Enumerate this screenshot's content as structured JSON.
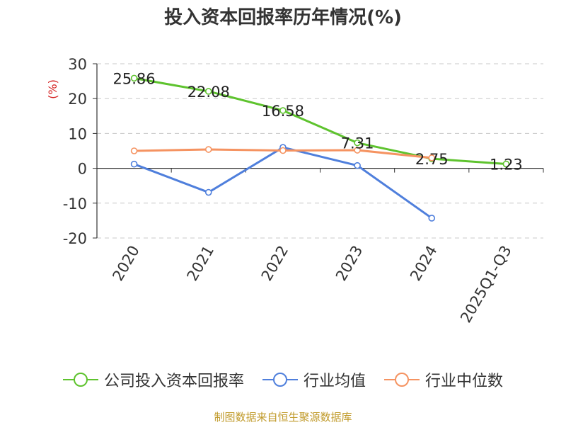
{
  "chart_data": {
    "type": "line",
    "title": "投入资本回报率历年情况(%)",
    "ylabel": "(%)",
    "categories": [
      "2020",
      "2021",
      "2022",
      "2023",
      "2024",
      "2025Q1-Q3"
    ],
    "ylim": [
      -20,
      30
    ],
    "yticks": [
      30,
      20,
      10,
      0,
      -10,
      -20
    ],
    "grid": true,
    "legend_position": "bottom",
    "series": [
      {
        "name": "公司投入资本回报率",
        "color": "#5ec32e",
        "values": [
          25.86,
          22.08,
          16.58,
          7.31,
          2.75,
          1.23
        ],
        "labels": [
          "25.86",
          "22.08",
          "16.58",
          "7.31",
          "2.75",
          "1.23"
        ]
      },
      {
        "name": "行业均值",
        "color": "#4f7fdc",
        "values": [
          1.2,
          -6.9,
          6.0,
          0.8,
          -14.3,
          null
        ]
      },
      {
        "name": "行业中位数",
        "color": "#f59361",
        "values": [
          5.0,
          5.4,
          5.1,
          5.2,
          3.0,
          null
        ]
      }
    ]
  },
  "source_note": "制图数据来自恒生聚源数据库"
}
